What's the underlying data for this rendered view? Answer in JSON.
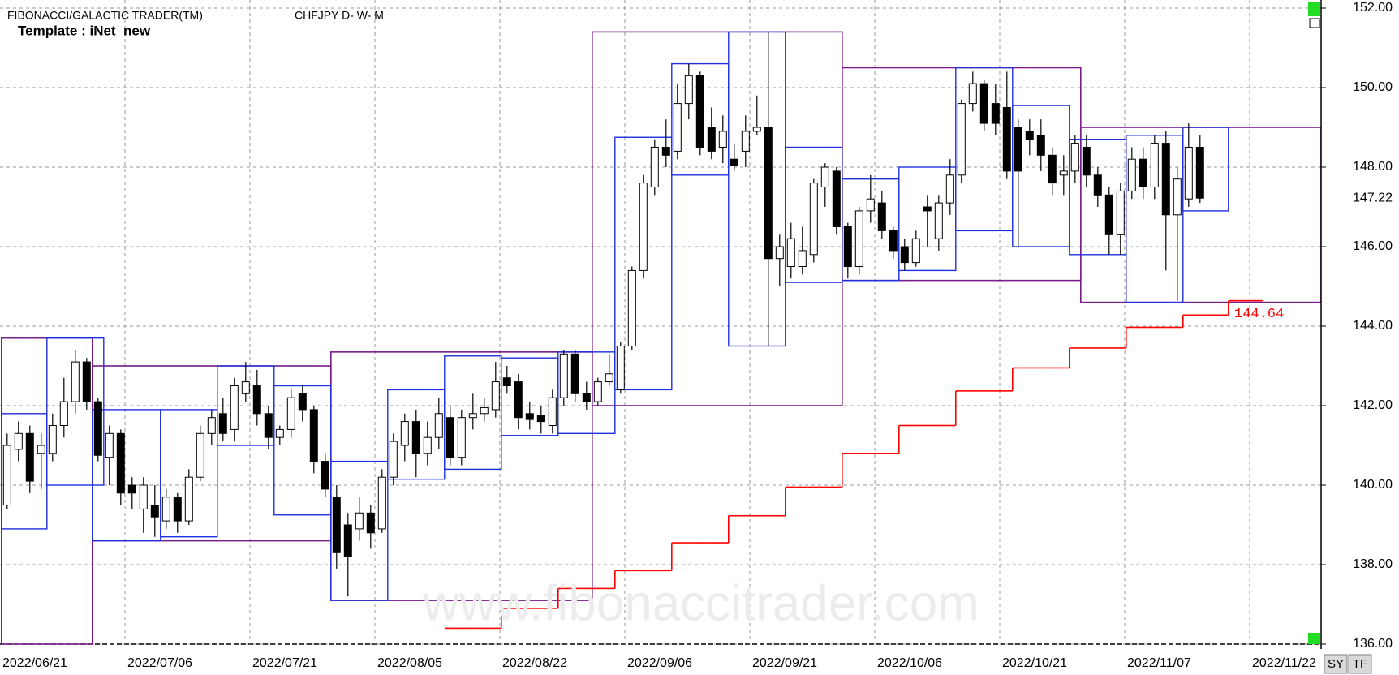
{
  "chart_data": {
    "type": "candlestick",
    "title": "FIBONACCI/GALACTIC TRADER(TM)",
    "subtitle": "CHFJPY D- W- M",
    "template_label": "Template : iNet_new",
    "watermark": "www.fibonaccitrader.com",
    "categories": [
      "2022/06/21",
      null,
      null,
      null,
      null,
      null,
      null,
      null,
      null,
      null,
      null,
      "2022/07/06",
      null,
      null,
      null,
      null,
      null,
      null,
      null,
      null,
      null,
      null,
      "2022/07/21",
      null,
      null,
      null,
      null,
      null,
      null,
      null,
      null,
      null,
      null,
      "2022/08/05",
      null,
      null,
      null,
      null,
      null,
      null,
      null,
      null,
      null,
      null,
      "2022/08/22",
      null,
      null,
      null,
      null,
      null,
      null,
      null,
      null,
      null,
      null,
      "2022/09/06",
      null,
      null,
      null,
      null,
      null,
      null,
      null,
      null,
      null,
      null,
      "2022/09/21",
      null,
      null,
      null,
      null,
      null,
      null,
      null,
      null,
      null,
      null,
      "2022/10/06",
      null,
      null,
      null,
      null,
      null,
      null,
      null,
      null,
      null,
      null,
      "2022/10/21",
      null,
      null,
      null,
      null,
      null,
      null,
      null,
      null,
      null,
      null,
      "2022/11/07",
      null,
      null,
      null,
      null,
      null,
      null,
      null,
      null,
      null,
      null,
      "2022/11/22"
    ],
    "open": [
      139.5,
      140.9,
      141.3,
      140.8,
      140.8,
      141.5,
      142.1,
      143.1,
      142.1,
      140.7,
      141.3,
      140.0,
      139.4,
      139.5,
      139.1,
      139.7,
      139.1,
      140.2,
      141.3,
      141.8,
      141.4,
      142.3,
      142.5,
      141.8,
      141.2,
      141.4,
      142.3,
      141.9,
      140.6,
      139.7,
      139.0,
      138.9,
      139.3,
      138.9,
      140.2,
      141.0,
      141.6,
      140.8,
      141.2,
      141.7,
      140.7,
      141.7,
      141.8,
      141.9,
      142.7,
      142.6,
      141.8,
      141.75,
      141.5,
      142.2,
      143.3,
      142.3,
      142.1,
      142.6,
      142.4,
      143.5,
      145.4,
      147.5,
      148.5,
      148.4,
      149.6,
      150.3,
      149.0,
      148.5,
      148.2,
      148.4,
      148.9,
      149.0,
      145.7,
      145.5,
      145.5,
      145.8,
      147.5,
      147.9,
      146.5,
      145.5,
      146.9,
      147.1,
      146.4,
      146.0,
      145.6,
      147.0,
      146.2,
      147.1,
      147.8,
      149.6,
      150.1,
      149.6,
      149.5,
      149.0,
      148.9,
      148.8,
      148.3,
      147.8,
      147.9,
      148.5,
      147.8,
      147.3,
      146.3,
      147.4,
      148.2,
      147.5,
      148.6,
      146.8,
      147.2,
      148.5,
      null,
      null,
      null,
      null,
      null
    ],
    "high": [
      141.3,
      141.6,
      141.5,
      141.3,
      141.8,
      142.7,
      143.4,
      143.2,
      142.2,
      141.5,
      141.4,
      140.2,
      140.2,
      140.0,
      139.9,
      139.8,
      140.4,
      141.5,
      141.9,
      142.2,
      142.7,
      143.1,
      142.9,
      142.0,
      141.5,
      142.4,
      142.5,
      142.0,
      140.8,
      140.0,
      139.3,
      139.7,
      139.5,
      140.4,
      141.3,
      141.8,
      141.9,
      141.6,
      142.2,
      142.0,
      141.9,
      142.3,
      142.2,
      143.1,
      143.0,
      142.8,
      142.1,
      142.0,
      142.4,
      143.4,
      143.4,
      142.6,
      142.7,
      143.3,
      143.6,
      145.5,
      147.8,
      148.7,
      149.2,
      150.1,
      150.6,
      150.4,
      149.5,
      149.3,
      148.6,
      149.3,
      149.8,
      151.4,
      146.3,
      146.6,
      146.5,
      147.7,
      148.1,
      148.0,
      146.6,
      147.0,
      147.8,
      147.4,
      146.5,
      146.2,
      146.4,
      147.3,
      147.3,
      148.2,
      149.7,
      150.4,
      150.2,
      150.1,
      150.4,
      149.2,
      149.2,
      149.2,
      148.5,
      148.3,
      148.8,
      148.8,
      148.0,
      147.5,
      147.6,
      148.5,
      148.5,
      148.8,
      148.9,
      148.0,
      149.1,
      148.8,
      null,
      null,
      null,
      null,
      null
    ],
    "low": [
      139.4,
      140.6,
      139.8,
      139.9,
      140.6,
      141.2,
      141.8,
      141.9,
      140.6,
      140.0,
      139.5,
      139.4,
      138.8,
      138.7,
      138.9,
      138.8,
      139.0,
      140.1,
      141.0,
      141.1,
      141.1,
      142.1,
      141.5,
      140.9,
      141.0,
      141.2,
      141.6,
      140.3,
      139.7,
      137.9,
      137.2,
      138.6,
      138.4,
      138.8,
      140.0,
      140.6,
      140.2,
      140.5,
      140.9,
      140.5,
      140.5,
      141.4,
      141.6,
      141.7,
      142.3,
      141.4,
      141.4,
      141.3,
      141.3,
      142.0,
      142.1,
      141.9,
      142.0,
      142.5,
      142.3,
      143.4,
      145.2,
      147.3,
      148.0,
      148.2,
      149.2,
      148.3,
      148.2,
      148.1,
      147.9,
      148.0,
      148.8,
      143.5,
      145.0,
      145.2,
      145.3,
      145.6,
      147.0,
      146.3,
      145.2,
      145.3,
      146.6,
      146.2,
      145.7,
      145.4,
      145.5,
      146.0,
      145.9,
      146.8,
      147.6,
      149.4,
      148.9,
      148.8,
      147.7,
      146.0,
      148.3,
      147.9,
      147.3,
      147.3,
      147.6,
      147.5,
      147.0,
      145.8,
      145.8,
      147.2,
      147.2,
      147.2,
      145.4,
      144.64,
      147.0,
      147.1,
      null,
      null,
      null,
      null,
      null
    ],
    "close": [
      141.0,
      141.3,
      140.1,
      141.0,
      141.5,
      142.1,
      143.1,
      142.1,
      140.75,
      141.3,
      139.8,
      139.8,
      140.0,
      139.2,
      139.7,
      139.1,
      140.2,
      141.3,
      141.7,
      141.3,
      142.5,
      142.6,
      141.8,
      141.2,
      141.4,
      142.2,
      141.9,
      140.6,
      139.9,
      138.3,
      138.2,
      139.3,
      138.8,
      140.2,
      141.1,
      141.6,
      140.8,
      141.2,
      141.8,
      140.7,
      141.7,
      141.8,
      141.95,
      142.6,
      142.5,
      141.7,
      141.65,
      141.6,
      142.2,
      143.3,
      142.3,
      142.1,
      142.6,
      142.8,
      143.5,
      145.4,
      147.6,
      148.5,
      148.3,
      149.6,
      150.3,
      148.5,
      148.4,
      148.9,
      148.05,
      148.9,
      149.0,
      145.7,
      146.0,
      146.2,
      145.9,
      147.6,
      148.0,
      146.5,
      145.5,
      146.9,
      147.2,
      146.4,
      145.9,
      145.6,
      146.2,
      146.9,
      147.1,
      147.8,
      149.6,
      150.1,
      149.1,
      149.1,
      147.9,
      147.9,
      148.7,
      148.3,
      147.6,
      147.9,
      148.6,
      147.8,
      147.3,
      146.3,
      147.4,
      148.2,
      147.5,
      148.6,
      146.8,
      147.7,
      148.5,
      147.22,
      null,
      null,
      null,
      null,
      null
    ],
    "up_color": "#ffffff",
    "down_color": "#000000",
    "ylim": [
      136,
      152
    ],
    "yticks": [
      {
        "value": 136,
        "label": "136.00"
      },
      {
        "value": 138,
        "label": "138.00"
      },
      {
        "value": 140,
        "label": "140.00"
      },
      {
        "value": 142,
        "label": "142.00"
      },
      {
        "value": 144,
        "label": "144.00"
      },
      {
        "value": 146,
        "label": "146.00"
      },
      {
        "value": 148,
        "label": "148.00"
      },
      {
        "value": 150,
        "label": "150.00"
      },
      {
        "value": 152,
        "label": "152.00"
      }
    ],
    "grid": true,
    "last_price": 147.22,
    "step_line": {
      "color": "#ff0000",
      "values": [
        null,
        null,
        null,
        null,
        null,
        null,
        null,
        null,
        null,
        null,
        null,
        null,
        null,
        null,
        null,
        null,
        null,
        null,
        null,
        null,
        null,
        null,
        null,
        null,
        null,
        null,
        null,
        null,
        null,
        null,
        null,
        null,
        null,
        null,
        null,
        null,
        null,
        null,
        null,
        136.4,
        136.4,
        136.4,
        136.4,
        136.4,
        136.9,
        136.9,
        136.9,
        136.9,
        136.9,
        137.4,
        137.4,
        137.4,
        137.4,
        137.4,
        137.85,
        137.85,
        137.85,
        137.85,
        137.85,
        138.55,
        138.55,
        138.55,
        138.55,
        138.55,
        139.23,
        139.23,
        139.23,
        139.23,
        139.23,
        139.95,
        139.95,
        139.95,
        139.95,
        139.95,
        140.8,
        140.8,
        140.8,
        140.8,
        140.8,
        141.5,
        141.5,
        141.5,
        141.5,
        141.5,
        142.37,
        142.37,
        142.37,
        142.37,
        142.37,
        142.95,
        142.95,
        142.95,
        142.95,
        142.95,
        143.45,
        143.45,
        143.45,
        143.45,
        143.45,
        143.97,
        143.97,
        143.97,
        143.97,
        143.97,
        144.28,
        144.28,
        144.28,
        144.28,
        144.64,
        144.64,
        144.64
      ]
    },
    "weekly_boxes": {
      "color": "#2030e0",
      "boxes": [
        {
          "start": 0,
          "end": 3,
          "high": 141.8,
          "low": 138.9
        },
        {
          "start": 4,
          "end": 8,
          "high": 143.7,
          "low": 140.0
        },
        {
          "start": 8,
          "end": 13,
          "high": 141.9,
          "low": 138.6
        },
        {
          "start": 14,
          "end": 18,
          "high": 141.9,
          "low": 138.7
        },
        {
          "start": 19,
          "end": 23,
          "high": 143.0,
          "low": 141.0
        },
        {
          "start": 24,
          "end": 28,
          "high": 142.5,
          "low": 139.25
        },
        {
          "start": 29,
          "end": 33,
          "high": 140.6,
          "low": 137.1
        },
        {
          "start": 34,
          "end": 38,
          "high": 142.4,
          "low": 140.15
        },
        {
          "start": 39,
          "end": 43,
          "high": 143.25,
          "low": 140.4
        },
        {
          "start": 44,
          "end": 48,
          "high": 143.2,
          "low": 141.25
        },
        {
          "start": 49,
          "end": 53,
          "high": 143.35,
          "low": 141.3
        },
        {
          "start": 54,
          "end": 58,
          "high": 148.75,
          "low": 142.4
        },
        {
          "start": 59,
          "end": 63,
          "high": 150.6,
          "low": 147.8
        },
        {
          "start": 64,
          "end": 68,
          "high": 151.4,
          "low": 143.5
        },
        {
          "start": 69,
          "end": 73,
          "high": 148.5,
          "low": 145.1
        },
        {
          "start": 74,
          "end": 78,
          "high": 147.7,
          "low": 145.15
        },
        {
          "start": 79,
          "end": 83,
          "high": 148.0,
          "low": 145.4
        },
        {
          "start": 84,
          "end": 88,
          "high": 150.5,
          "low": 146.4
        },
        {
          "start": 89,
          "end": 93,
          "high": 149.55,
          "low": 146.0
        },
        {
          "start": 94,
          "end": 98,
          "high": 148.7,
          "low": 145.8
        },
        {
          "start": 99,
          "end": 103,
          "high": 148.8,
          "low": 144.6
        },
        {
          "start": 104,
          "end": 107,
          "high": 149.0,
          "low": 146.9
        }
      ]
    },
    "monthly_boxes": {
      "color": "#7a1c8c",
      "boxes": [
        {
          "start": 0,
          "end": 7,
          "high": 143.7,
          "low": 136.0
        },
        {
          "start": 8,
          "end": 28,
          "high": 143.0,
          "low": 138.6
        },
        {
          "start": 29,
          "end": 51,
          "high": 143.35,
          "low": 137.1
        },
        {
          "start": 52,
          "end": 73,
          "high": 151.4,
          "low": 142.0
        },
        {
          "start": 74,
          "end": 94,
          "high": 150.5,
          "low": 145.15
        },
        {
          "start": 95,
          "end": 110,
          "high": 149.0,
          "low": 144.6
        }
      ]
    },
    "buttons": [
      "SY",
      "TF"
    ]
  }
}
